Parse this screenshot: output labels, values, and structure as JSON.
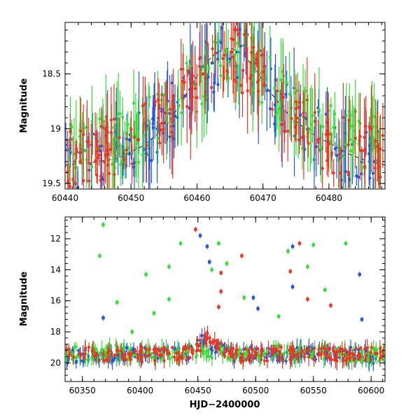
{
  "chart_data": [
    {
      "type": "scatter",
      "panel": "top",
      "xlabel": "",
      "ylabel": "Magnitude",
      "xlim": [
        60440,
        60488.5
      ],
      "ylim": [
        19.55,
        18.03
      ],
      "y_inverted": true,
      "x_ticks": [
        60440,
        60450,
        60460,
        60470,
        60480
      ],
      "x_tick_labels": [
        "60440",
        "60450",
        "60460",
        "60470",
        "60480"
      ],
      "y_ticks": [
        18.5,
        19,
        19.5
      ],
      "y_tick_labels": [
        "18.5",
        "19",
        "19.5"
      ],
      "grid": false,
      "model_curve": {
        "color": "#000000",
        "x": [
          60440,
          60444,
          60448,
          60452,
          60455,
          60457,
          60459,
          60461,
          60463,
          60465,
          60467,
          60469,
          60471,
          60474,
          60477,
          60480,
          60483,
          60486,
          60488.5
        ],
        "y": [
          19.33,
          19.31,
          19.27,
          19.15,
          19.0,
          18.82,
          18.62,
          18.42,
          18.3,
          18.26,
          18.32,
          18.47,
          18.66,
          18.88,
          19.03,
          19.13,
          19.23,
          19.3,
          19.33
        ]
      },
      "series": [
        {
          "color": "#2255dd",
          "x": [
            60441.5,
            60445.2,
            60449.8,
            60454.0,
            60458.2,
            60462.3,
            60466.1,
            60469.4,
            60473.0,
            60476.8,
            60481.6,
            60486.9
          ],
          "y": [
            19.3,
            19.2,
            19.1,
            19.0,
            18.7,
            18.4,
            18.3,
            18.5,
            18.8,
            19.0,
            19.2,
            19.3
          ]
        },
        {
          "color": "#33dd33",
          "x": [
            60443.0,
            60447.6,
            60452.5,
            60459.7,
            60464.4,
            60468.3,
            60475.5,
            60483.2
          ],
          "y": [
            19.2,
            19.1,
            19.0,
            18.6,
            18.3,
            18.4,
            18.9,
            19.1
          ]
        },
        {
          "color": "#ee3322",
          "x": [
            60442.3,
            60446.4,
            60451.1,
            60456.5,
            60460.9,
            60465.2,
            60470.2,
            60478.4,
            60485.0
          ],
          "y": [
            19.3,
            19.2,
            19.1,
            18.8,
            18.5,
            18.3,
            18.6,
            19.1,
            19.2
          ]
        }
      ]
    },
    {
      "type": "scatter",
      "panel": "bottom",
      "xlabel": "HJD−2400000",
      "ylabel": "Magnitude",
      "xlim": [
        60335,
        60612
      ],
      "ylim": [
        21.2,
        10.6
      ],
      "y_inverted": true,
      "x_ticks": [
        60350,
        60400,
        60450,
        60500,
        60550,
        60600
      ],
      "x_tick_labels": [
        "60350",
        "60400",
        "60450",
        "60500",
        "60550",
        "60600"
      ],
      "y_ticks": [
        12,
        14,
        16,
        18,
        20
      ],
      "y_tick_labels": [
        "12",
        "14",
        "16",
        "18",
        "20"
      ],
      "grid": false,
      "series": [
        {
          "color": "#2255dd",
          "x": [
            60360,
            60370,
            60385,
            60400,
            60420,
            60440,
            60455,
            60465,
            60480,
            60500,
            60520,
            60545,
            60570,
            60590,
            60600
          ],
          "y": [
            19.6,
            19.5,
            19.4,
            19.5,
            19.3,
            19.4,
            18.6,
            19.0,
            19.5,
            19.4,
            19.5,
            19.4,
            19.5,
            19.4,
            19.6
          ]
        },
        {
          "color": "#33dd33",
          "x": [
            60365,
            60380,
            60395,
            60410,
            60430,
            60450,
            60470,
            60490,
            60510,
            60530,
            60550,
            60575,
            60595
          ],
          "y": [
            19.4,
            19.3,
            19.5,
            19.4,
            19.3,
            19.2,
            19.3,
            19.4,
            19.3,
            19.4,
            19.3,
            19.4,
            19.5
          ]
        },
        {
          "color": "#ee3322",
          "x": [
            60348,
            60362,
            60378,
            60392,
            60408,
            60425,
            60445,
            60460,
            60478,
            60495,
            60515,
            60535,
            60560,
            60585,
            60605
          ],
          "y": [
            19.4,
            19.4,
            19.5,
            19.4,
            19.5,
            19.4,
            19.3,
            18.4,
            19.4,
            19.5,
            19.4,
            19.5,
            19.4,
            19.5,
            19.4
          ]
        }
      ],
      "outliers": [
        {
          "color": "#33dd33",
          "x": 60368,
          "y": 11.1
        },
        {
          "color": "#33dd33",
          "x": 60365,
          "y": 13.1
        },
        {
          "color": "#2255dd",
          "x": 60368,
          "y": 17.1
        },
        {
          "color": "#33dd33",
          "x": 60380,
          "y": 16.1
        },
        {
          "color": "#33dd33",
          "x": 60393,
          "y": 18.0
        },
        {
          "color": "#33dd33",
          "x": 60405,
          "y": 14.3
        },
        {
          "color": "#33dd33",
          "x": 60412,
          "y": 16.8
        },
        {
          "color": "#33dd33",
          "x": 60425,
          "y": 13.8
        },
        {
          "color": "#33dd33",
          "x": 60425,
          "y": 15.9
        },
        {
          "color": "#33dd33",
          "x": 60435,
          "y": 12.3
        },
        {
          "color": "#ee3322",
          "x": 60448,
          "y": 11.4
        },
        {
          "color": "#2255dd",
          "x": 60452,
          "y": 11.8
        },
        {
          "color": "#2255dd",
          "x": 60458,
          "y": 12.5
        },
        {
          "color": "#33dd33",
          "x": 60468,
          "y": 12.3
        },
        {
          "color": "#2255dd",
          "x": 60460,
          "y": 13.5
        },
        {
          "color": "#33dd33",
          "x": 60462,
          "y": 14.0
        },
        {
          "color": "#ee3322",
          "x": 60470,
          "y": 14.2
        },
        {
          "color": "#33dd33",
          "x": 60475,
          "y": 13.6
        },
        {
          "color": "#ee3322",
          "x": 60470,
          "y": 15.4
        },
        {
          "color": "#ee3322",
          "x": 60468,
          "y": 16.4
        },
        {
          "color": "#ee3322",
          "x": 60488,
          "y": 13.1
        },
        {
          "color": "#33dd33",
          "x": 60490,
          "y": 15.8
        },
        {
          "color": "#2255dd",
          "x": 60498,
          "y": 15.8
        },
        {
          "color": "#2255dd",
          "x": 60502,
          "y": 16.5
        },
        {
          "color": "#33dd33",
          "x": 60520,
          "y": 17.0
        },
        {
          "color": "#33dd33",
          "x": 60528,
          "y": 12.8
        },
        {
          "color": "#2255dd",
          "x": 60532,
          "y": 12.5
        },
        {
          "color": "#ee3322",
          "x": 60530,
          "y": 14.1
        },
        {
          "color": "#2255dd",
          "x": 60532,
          "y": 15.1
        },
        {
          "color": "#ee3322",
          "x": 60538,
          "y": 12.3
        },
        {
          "color": "#33dd33",
          "x": 60545,
          "y": 13.8
        },
        {
          "color": "#33dd33",
          "x": 60550,
          "y": 12.4
        },
        {
          "color": "#ee3322",
          "x": 60545,
          "y": 15.9
        },
        {
          "color": "#33dd33",
          "x": 60560,
          "y": 15.3
        },
        {
          "color": "#ee3322",
          "x": 60565,
          "y": 16.3
        },
        {
          "color": "#33dd33",
          "x": 60578,
          "y": 12.3
        },
        {
          "color": "#2255dd",
          "x": 60590,
          "y": 14.3
        },
        {
          "color": "#2255dd",
          "x": 60592,
          "y": 17.2
        }
      ]
    }
  ]
}
